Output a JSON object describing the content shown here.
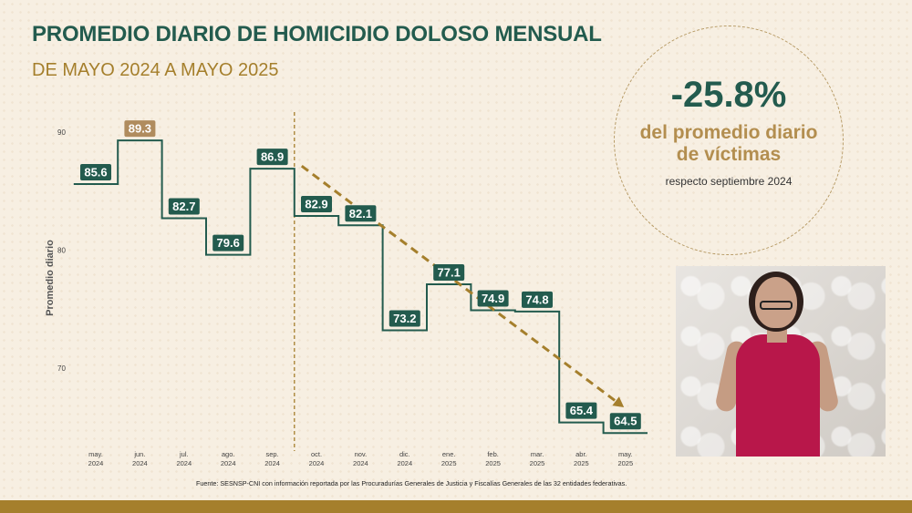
{
  "title": "PROMEDIO DIARIO DE HOMICIDIO DOLOSO MENSUAL",
  "subtitle": "DE MAYO 2024 A MAYO 2025",
  "highlight": {
    "percent": "-25.8%",
    "line1": "del promedio diario",
    "line2": "de víctimas",
    "reference": "respecto septiembre 2024"
  },
  "source": "Fuente: SESNSP-CNI con información reportada por las Procuradurías Generales de Justicia y Fiscalías Generales de las 32 entidades federativas.",
  "colors": {
    "primary": "#235b4e",
    "accent": "#a57f2c",
    "highlight_label": "#b08c5e",
    "background": "#f7efe2"
  },
  "chart_data": {
    "type": "line",
    "step": true,
    "ylabel": "Promedio diario",
    "ylim": [
      64,
      91
    ],
    "yticks": [
      70,
      80,
      90
    ],
    "categories": [
      {
        "month": "may.",
        "year": "2024"
      },
      {
        "month": "jun.",
        "year": "2024"
      },
      {
        "month": "jul.",
        "year": "2024"
      },
      {
        "month": "ago.",
        "year": "2024"
      },
      {
        "month": "sep.",
        "year": "2024"
      },
      {
        "month": "oct.",
        "year": "2024"
      },
      {
        "month": "nov.",
        "year": "2024"
      },
      {
        "month": "dic.",
        "year": "2024"
      },
      {
        "month": "ene.",
        "year": "2025"
      },
      {
        "month": "feb.",
        "year": "2025"
      },
      {
        "month": "mar.",
        "year": "2025"
      },
      {
        "month": "abr.",
        "year": "2025"
      },
      {
        "month": "may.",
        "year": "2025"
      }
    ],
    "values": [
      85.6,
      89.3,
      82.7,
      79.6,
      86.9,
      82.9,
      82.1,
      73.2,
      77.1,
      74.9,
      74.8,
      65.4,
      64.5
    ],
    "max_highlight_index": 1,
    "reference_line_index": 4,
    "trend_arrow": {
      "from_index": 4,
      "to_index": 12
    },
    "grid": false,
    "legend": "none"
  }
}
